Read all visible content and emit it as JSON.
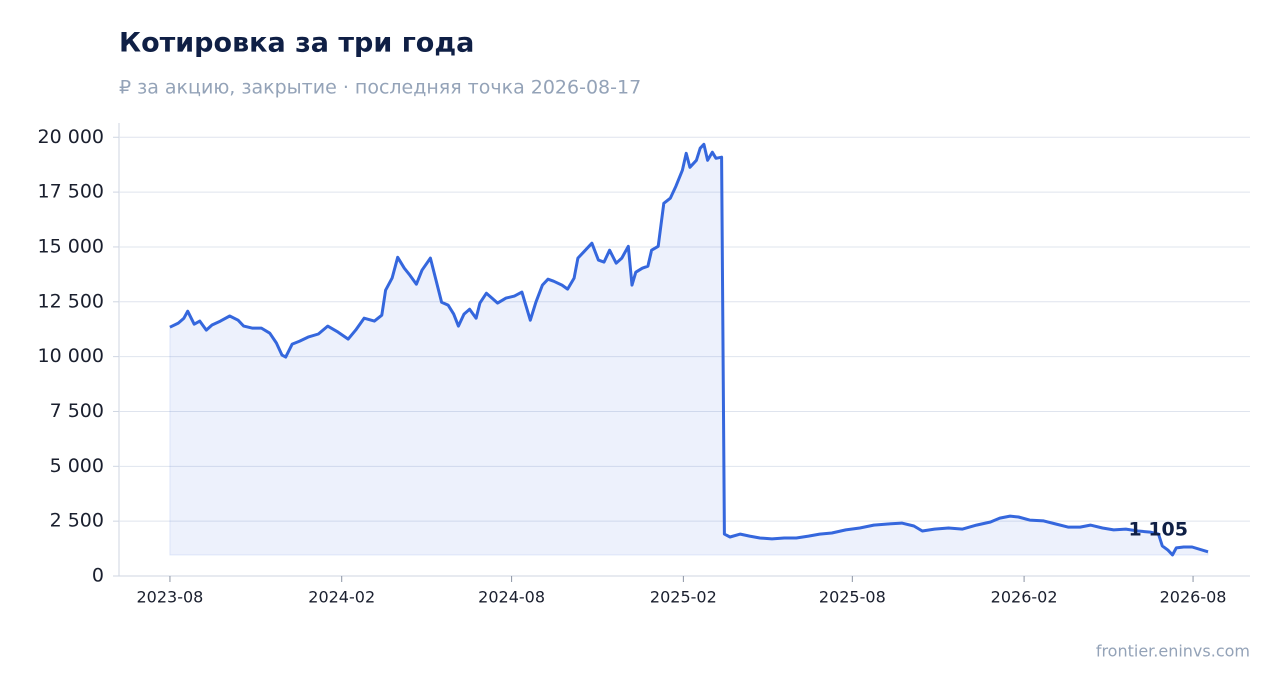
{
  "chart_data": {
    "type": "line",
    "title": "Котировка за три года",
    "subtitle": "₽ за акцию, закрытие · последняя точка 2026-08-17",
    "source": "frontier.eninvs.com",
    "color": "#3567dd",
    "fill": true,
    "grid": true,
    "x": [
      "2023-08-01",
      "2023-08-10",
      "2023-08-16",
      "2023-08-20",
      "2023-08-27",
      "2023-09-02",
      "2023-09-09",
      "2023-09-15",
      "2023-09-24",
      "2023-10-04",
      "2023-10-13",
      "2023-10-19",
      "2023-10-28",
      "2023-11-07",
      "2023-11-16",
      "2023-11-23",
      "2023-11-29",
      "2023-12-03",
      "2023-12-10",
      "2023-12-18",
      "2023-12-27",
      "2024-01-07",
      "2024-01-17",
      "2024-01-28",
      "2024-02-08",
      "2024-02-16",
      "2024-02-25",
      "2024-03-07",
      "2024-03-15",
      "2024-03-19",
      "2024-03-26",
      "2024-04-01",
      "2024-04-08",
      "2024-04-14",
      "2024-04-21",
      "2024-04-27",
      "2024-05-06",
      "2024-05-12",
      "2024-05-18",
      "2024-05-25",
      "2024-05-31",
      "2024-06-05",
      "2024-06-11",
      "2024-06-17",
      "2024-06-24",
      "2024-06-28",
      "2024-07-05",
      "2024-07-11",
      "2024-07-17",
      "2024-07-26",
      "2024-08-04",
      "2024-08-12",
      "2024-08-21",
      "2024-08-27",
      "2024-09-03",
      "2024-09-09",
      "2024-09-15",
      "2024-09-24",
      "2024-09-30",
      "2024-10-07",
      "2024-10-11",
      "2024-10-17",
      "2024-10-26",
      "2024-11-02",
      "2024-11-08",
      "2024-11-14",
      "2024-11-21",
      "2024-11-27",
      "2024-12-04",
      "2024-12-08",
      "2024-12-12",
      "2024-12-19",
      "2024-12-25",
      "2024-12-29",
      "2025-01-05",
      "2025-01-11",
      "2025-01-18",
      "2025-01-24",
      "2025-01-31",
      "2025-02-04",
      "2025-02-08",
      "2025-02-15",
      "2025-02-19",
      "2025-02-23",
      "2025-02-27",
      "2025-03-04",
      "2025-03-08",
      "2025-03-14",
      "2025-03-17",
      "2025-03-23",
      "2025-04-03",
      "2025-04-13",
      "2025-04-24",
      "2025-05-07",
      "2025-05-20",
      "2025-06-02",
      "2025-06-15",
      "2025-06-27",
      "2025-07-10",
      "2025-07-25",
      "2025-08-09",
      "2025-08-24",
      "2025-09-08",
      "2025-09-23",
      "2025-10-06",
      "2025-10-15",
      "2025-10-28",
      "2025-11-12",
      "2025-11-27",
      "2025-12-12",
      "2025-12-27",
      "2026-01-06",
      "2026-01-17",
      "2026-01-26",
      "2026-02-07",
      "2026-02-22",
      "2026-03-07",
      "2026-03-20",
      "2026-04-02",
      "2026-04-13",
      "2026-04-26",
      "2026-05-08",
      "2026-05-21",
      "2026-06-03",
      "2026-06-16",
      "2026-06-25",
      "2026-06-29",
      "2026-07-05",
      "2026-07-10",
      "2026-07-14",
      "2026-07-22",
      "2026-07-31",
      "2026-08-17"
    ],
    "values": [
      11340,
      11530,
      11750,
      12070,
      11480,
      11620,
      11210,
      11440,
      11620,
      11850,
      11660,
      11390,
      11300,
      11300,
      11070,
      10620,
      10070,
      9980,
      10570,
      10710,
      10890,
      11030,
      11390,
      11120,
      10800,
      11210,
      11750,
      11620,
      11890,
      13030,
      13580,
      14530,
      14030,
      13710,
      13300,
      13940,
      14490,
      13490,
      12480,
      12350,
      11940,
      11390,
      11940,
      12160,
      11750,
      12440,
      12890,
      12670,
      12440,
      12670,
      12760,
      12940,
      11660,
      12480,
      13260,
      13530,
      13440,
      13260,
      13080,
      13580,
      14490,
      14760,
      15170,
      14400,
      14310,
      14850,
      14260,
      14490,
      15030,
      13260,
      13850,
      14030,
      14120,
      14850,
      15030,
      16990,
      17220,
      17770,
      18500,
      19270,
      18630,
      18950,
      19500,
      19680,
      18950,
      19320,
      19040,
      19090,
      1910,
      1780,
      1910,
      1820,
      1730,
      1690,
      1730,
      1730,
      1820,
      1910,
      1960,
      2100,
      2190,
      2320,
      2370,
      2410,
      2280,
      2050,
      2140,
      2190,
      2140,
      2320,
      2460,
      2640,
      2730,
      2690,
      2550,
      2510,
      2370,
      2230,
      2230,
      2320,
      2190,
      2100,
      2140,
      2050,
      2000,
      1910,
      1370,
      1180,
      960,
      1280,
      1320,
      1320,
      1105
    ],
    "annotations": [
      {
        "x": "2026-08-17",
        "y": 1105,
        "text": "1 105"
      }
    ],
    "xlim": [
      "2023-06",
      "2026-10"
    ],
    "xticks": [
      "2023-08",
      "2024-02",
      "2024-08",
      "2025-02",
      "2025-08",
      "2026-02",
      "2026-08"
    ],
    "ylim": [
      0,
      20650
    ],
    "yticks": [
      0,
      {
        "value": 2500,
        "label": "2 500"
      },
      {
        "value": 5000,
        "label": "5 000"
      },
      {
        "value": 7500,
        "label": "7 500"
      },
      {
        "value": 10000,
        "label": "10 000"
      },
      {
        "value": 12500,
        "label": "12 500"
      },
      {
        "value": 15000,
        "label": "15 000"
      },
      {
        "value": 17500,
        "label": "17 500"
      },
      {
        "value": 20000,
        "label": "20 000"
      }
    ]
  }
}
